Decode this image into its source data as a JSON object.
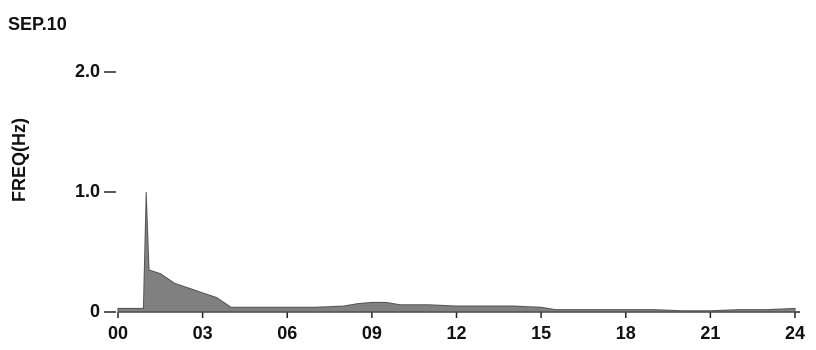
{
  "chart_data": {
    "type": "area",
    "title": "SEP.10",
    "y_label": "FREQ(Hz)",
    "x": [
      0,
      0.9,
      1.0,
      1.1,
      1.5,
      2.0,
      2.5,
      3.0,
      3.5,
      4.0,
      5,
      6,
      7,
      8,
      8.5,
      9,
      9.5,
      10,
      11,
      12,
      13,
      14,
      15,
      15.5,
      16,
      17,
      18,
      19,
      20,
      21,
      22,
      23,
      24
    ],
    "values": [
      0.03,
      0.03,
      1.0,
      0.35,
      0.32,
      0.24,
      0.2,
      0.16,
      0.12,
      0.04,
      0.04,
      0.04,
      0.04,
      0.05,
      0.07,
      0.08,
      0.08,
      0.06,
      0.06,
      0.05,
      0.05,
      0.05,
      0.04,
      0.02,
      0.02,
      0.02,
      0.02,
      0.02,
      0.01,
      0.01,
      0.02,
      0.02,
      0.03
    ],
    "color": "#555555",
    "xlim": [
      0,
      24
    ],
    "xticks": [
      {
        "value": 0,
        "label": "00"
      },
      {
        "value": 3,
        "label": "03"
      },
      {
        "value": 6,
        "label": "06"
      },
      {
        "value": 9,
        "label": "09"
      },
      12,
      15,
      18,
      21,
      24
    ],
    "ylim": [
      0,
      2
    ],
    "yticks": [
      0,
      {
        "value": 1,
        "label": "1.0"
      },
      {
        "value": 2,
        "label": "2.0"
      }
    ]
  }
}
